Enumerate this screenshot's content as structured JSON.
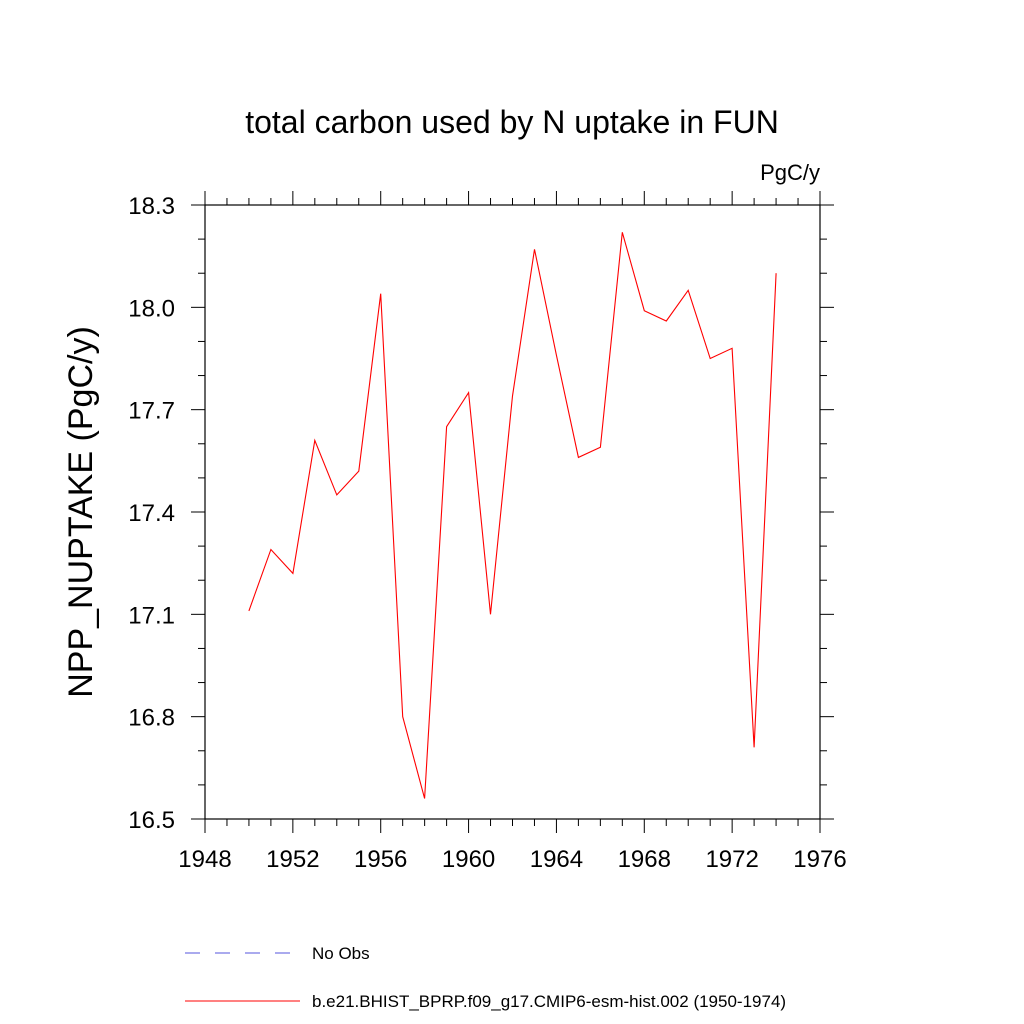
{
  "chart_data": {
    "type": "line",
    "title": "total carbon used by N uptake in FUN",
    "units": "PgC/y",
    "ylabel": "NPP_NUPTAKE  (PgC/y)",
    "xlabel": "",
    "xlim": [
      1948,
      1976
    ],
    "ylim": [
      16.5,
      18.3
    ],
    "x_ticks": [
      "1948",
      "1952",
      "1956",
      "1960",
      "1964",
      "1968",
      "1972",
      "1976"
    ],
    "y_ticks": [
      "16.5",
      "16.8",
      "17.1",
      "17.4",
      "17.7",
      "18.0",
      "18.3"
    ],
    "grid": false,
    "legend_position": "bottom",
    "series": [
      {
        "name": "b.e21.BHIST_BPRP.f09_g17.CMIP6-esm-hist.002 (1950-1974)",
        "color": "#ff0000",
        "style": "solid",
        "x": [
          1950,
          1951,
          1952,
          1953,
          1954,
          1955,
          1956,
          1957,
          1958,
          1959,
          1960,
          1961,
          1962,
          1963,
          1964,
          1965,
          1966,
          1967,
          1968,
          1969,
          1970,
          1971,
          1972,
          1973,
          1974
        ],
        "y": [
          17.11,
          17.29,
          17.22,
          17.61,
          17.45,
          17.52,
          18.04,
          16.8,
          16.56,
          17.65,
          17.75,
          17.1,
          17.74,
          18.17,
          17.86,
          17.56,
          17.59,
          18.22,
          17.99,
          17.96,
          18.05,
          17.85,
          17.88,
          16.71,
          18.1
        ]
      }
    ],
    "legend": [
      {
        "label": "No Obs",
        "color": "#5555dd",
        "style": "dashed"
      },
      {
        "label": "b.e21.BHIST_BPRP.f09_g17.CMIP6-esm-hist.002 (1950-1974)",
        "color": "#ff0000",
        "style": "solid"
      }
    ]
  }
}
